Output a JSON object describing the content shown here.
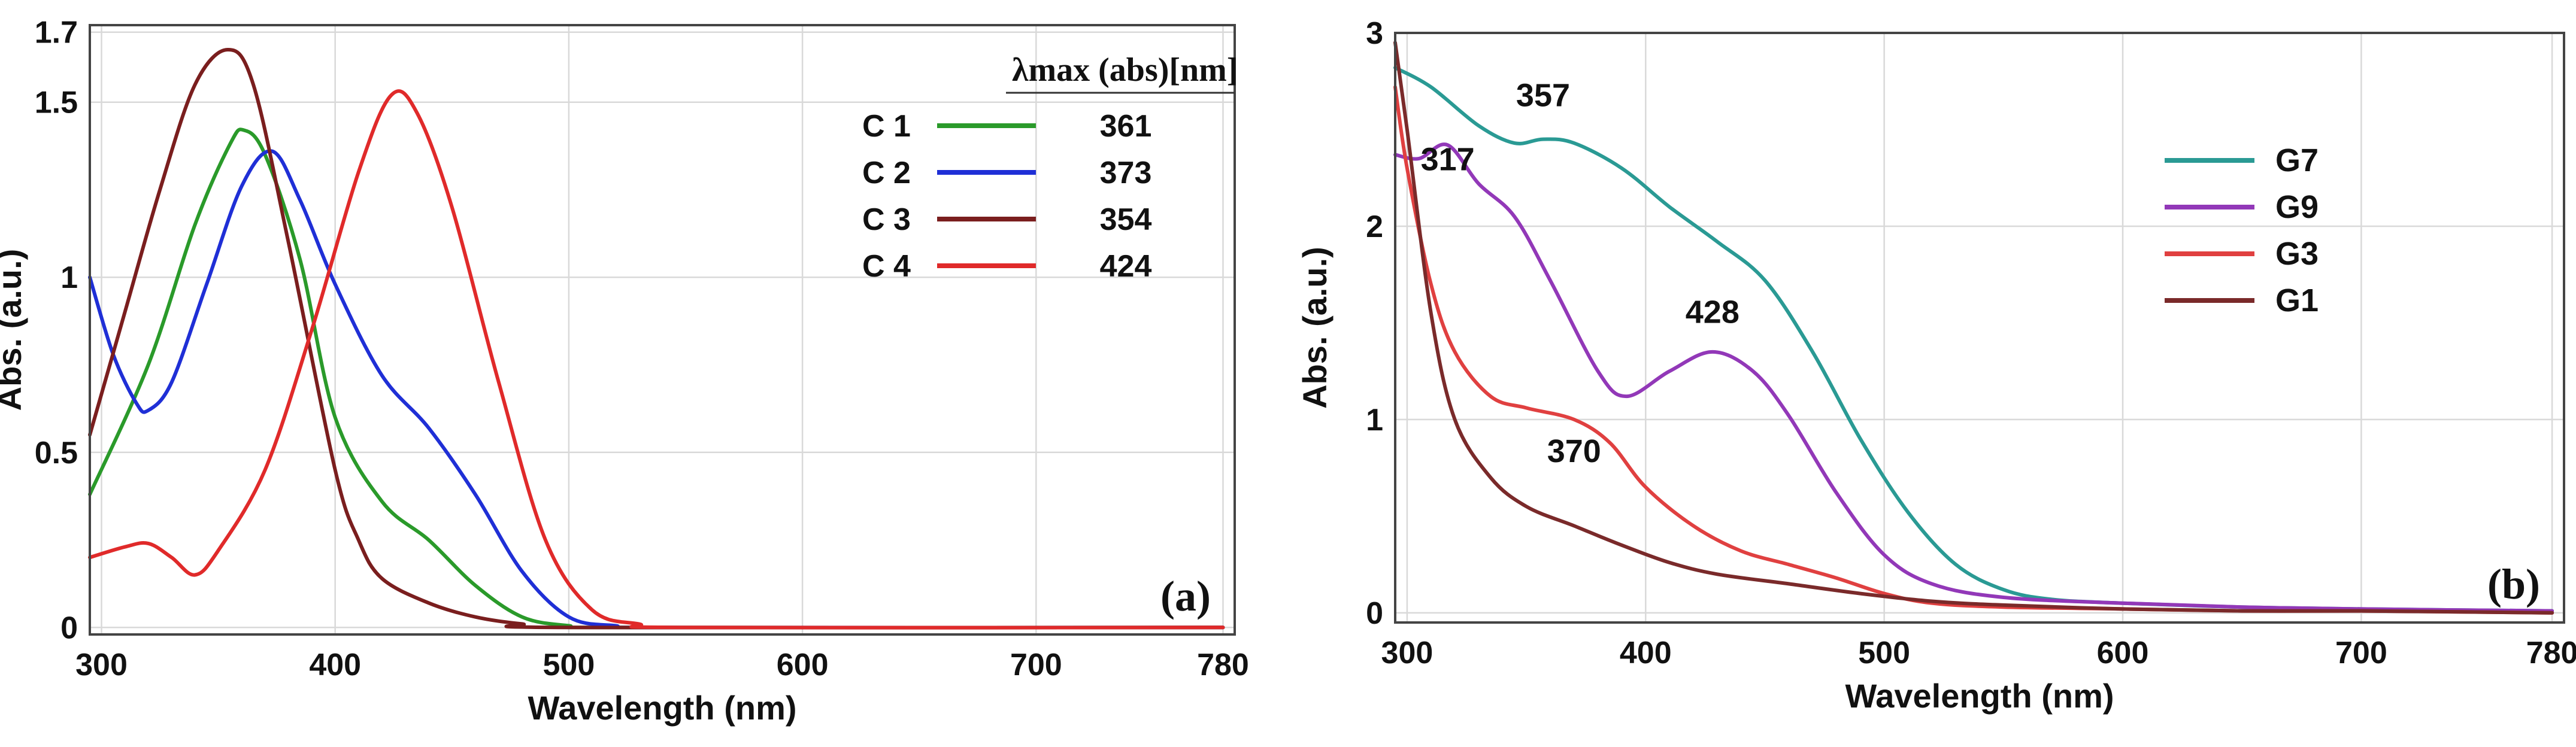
{
  "chart_data": [
    {
      "type": "line",
      "panel": "(a)",
      "xlabel": "Wavelength (nm)",
      "ylabel": "Abs. (a.u.)",
      "xlim": [
        295,
        785
      ],
      "ylim": [
        -0.02,
        1.72
      ],
      "xticks": [
        300,
        400,
        500,
        600,
        700,
        780
      ],
      "xtick_labels": [
        "300",
        "400",
        "500",
        "600",
        "700",
        "780"
      ],
      "yticks": [
        0,
        0.5,
        1,
        1.5,
        1.7
      ],
      "ytick_labels": [
        "0",
        "0.5",
        "1",
        "1.5",
        "1.7"
      ],
      "grid": true,
      "legend_header": "λmax (abs)[nm]",
      "series": [
        {
          "name": "C 1",
          "lambda_max": "361",
          "color": "#2a9a2a",
          "x": [
            295,
            320,
            340,
            355,
            361,
            370,
            385,
            400,
            420,
            440,
            460,
            480,
            500,
            520,
            780
          ],
          "y": [
            0.38,
            0.75,
            1.15,
            1.38,
            1.42,
            1.35,
            1.05,
            0.6,
            0.36,
            0.25,
            0.12,
            0.03,
            0.005,
            0,
            0
          ]
        },
        {
          "name": "C 2",
          "lambda_max": "373",
          "color": "#1f2fd6",
          "x": [
            295,
            305,
            315,
            320,
            330,
            345,
            360,
            373,
            385,
            400,
            420,
            440,
            460,
            480,
            500,
            520,
            540,
            780
          ],
          "y": [
            1.0,
            0.78,
            0.64,
            0.62,
            0.7,
            0.98,
            1.26,
            1.36,
            1.22,
            0.98,
            0.72,
            0.57,
            0.38,
            0.16,
            0.03,
            0.005,
            0,
            0
          ]
        },
        {
          "name": "C 3",
          "lambda_max": "354",
          "color": "#7a1e1e",
          "x": [
            295,
            310,
            325,
            340,
            354,
            365,
            380,
            400,
            410,
            420,
            440,
            460,
            480,
            500,
            780
          ],
          "y": [
            0.55,
            0.9,
            1.25,
            1.55,
            1.65,
            1.55,
            1.1,
            0.45,
            0.25,
            0.14,
            0.07,
            0.03,
            0.01,
            0,
            0
          ]
        },
        {
          "name": "C 4",
          "lambda_max": "424",
          "color": "#e02a2a",
          "x": [
            295,
            310,
            320,
            330,
            340,
            350,
            370,
            390,
            410,
            424,
            435,
            450,
            470,
            490,
            510,
            530,
            550,
            780
          ],
          "y": [
            0.2,
            0.23,
            0.24,
            0.2,
            0.15,
            0.22,
            0.45,
            0.85,
            1.3,
            1.52,
            1.47,
            1.2,
            0.7,
            0.25,
            0.05,
            0.01,
            0,
            0
          ]
        }
      ]
    },
    {
      "type": "line",
      "panel": "(b)",
      "xlabel": "Wavelength (nm)",
      "ylabel": "Abs. (a.u.)",
      "xlim": [
        295,
        785
      ],
      "ylim": [
        -0.05,
        3.0
      ],
      "xticks": [
        300,
        400,
        500,
        600,
        700,
        780
      ],
      "xtick_labels": [
        "300",
        "400",
        "500",
        "600",
        "700",
        "780"
      ],
      "yticks": [
        0,
        1,
        2,
        3
      ],
      "ytick_labels": [
        "0",
        "1",
        "2",
        "3"
      ],
      "grid": true,
      "annotations": [
        {
          "text": "357",
          "x": 357,
          "y": 2.62
        },
        {
          "text": "317",
          "x": 317,
          "y": 2.29
        },
        {
          "text": "428",
          "x": 428,
          "y": 1.5
        },
        {
          "text": "370",
          "x": 370,
          "y": 0.78
        }
      ],
      "series": [
        {
          "name": "G7",
          "color": "#2a9a94",
          "x": [
            295,
            310,
            330,
            345,
            357,
            370,
            390,
            410,
            430,
            450,
            470,
            490,
            510,
            530,
            550,
            570,
            600,
            650,
            700,
            780
          ],
          "y": [
            2.82,
            2.72,
            2.52,
            2.43,
            2.45,
            2.43,
            2.3,
            2.1,
            1.92,
            1.72,
            1.35,
            0.9,
            0.52,
            0.25,
            0.12,
            0.07,
            0.05,
            0.03,
            0.02,
            0.01
          ]
        },
        {
          "name": "G9",
          "color": "#9238b8",
          "x": [
            295,
            305,
            317,
            330,
            345,
            360,
            380,
            392,
            410,
            428,
            445,
            460,
            480,
            500,
            520,
            550,
            600,
            650,
            700,
            780
          ],
          "y": [
            2.37,
            2.35,
            2.42,
            2.22,
            2.05,
            1.72,
            1.25,
            1.12,
            1.25,
            1.35,
            1.25,
            1.02,
            0.62,
            0.3,
            0.15,
            0.08,
            0.05,
            0.03,
            0.02,
            0.01
          ]
        },
        {
          "name": "G3",
          "color": "#e04040",
          "x": [
            295,
            300,
            310,
            320,
            335,
            350,
            370,
            385,
            400,
            420,
            440,
            460,
            480,
            500,
            520,
            550,
            600,
            650,
            700,
            780
          ],
          "y": [
            2.72,
            2.3,
            1.7,
            1.35,
            1.12,
            1.06,
            1.0,
            0.88,
            0.65,
            0.45,
            0.32,
            0.25,
            0.18,
            0.1,
            0.05,
            0.03,
            0.02,
            0.01,
            0.01,
            0
          ]
        },
        {
          "name": "G1",
          "color": "#7a2a2a",
          "x": [
            295,
            300,
            310,
            320,
            335,
            350,
            370,
            390,
            410,
            430,
            460,
            490,
            520,
            550,
            600,
            650,
            700,
            780
          ],
          "y": [
            2.95,
            2.5,
            1.55,
            1.0,
            0.7,
            0.55,
            0.45,
            0.35,
            0.26,
            0.2,
            0.15,
            0.1,
            0.06,
            0.04,
            0.02,
            0.01,
            0.01,
            0
          ]
        }
      ]
    }
  ]
}
